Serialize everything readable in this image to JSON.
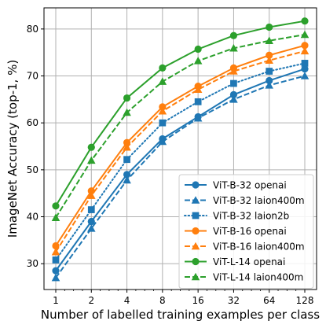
{
  "chart_data": {
    "type": "line",
    "title": "",
    "xlabel": "Number of labelled training examples per class",
    "ylabel": "ImageNet Accuracy (top-1, %)",
    "x_scale": "log2",
    "x": [
      1,
      2,
      4,
      8,
      16,
      32,
      64,
      128
    ],
    "x_tick_labels": [
      "1",
      "2",
      "4",
      "8",
      "16",
      "32",
      "64",
      "128"
    ],
    "ylim": [
      24.5,
      84.5
    ],
    "y_ticks": [
      30,
      40,
      50,
      60,
      70,
      80
    ],
    "grid": true,
    "legend_position": "lower-right",
    "series": [
      {
        "name": "ViT-B-32 openai",
        "color": "#1f77b4",
        "dash": "solid",
        "marker": "circle",
        "values": [
          28.5,
          39.0,
          49.0,
          56.6,
          61.3,
          66.0,
          69.0,
          71.5
        ]
      },
      {
        "name": "ViT-B-32 laion400m",
        "color": "#1f77b4",
        "dash": "dashed",
        "marker": "triangle",
        "values": [
          27.0,
          37.5,
          47.8,
          56.0,
          61.0,
          65.0,
          68.0,
          70.0
        ]
      },
      {
        "name": "ViT-B-32 laion2b",
        "color": "#1f77b4",
        "dash": "dotted",
        "marker": "square",
        "values": [
          30.8,
          41.5,
          52.2,
          60.0,
          64.5,
          68.4,
          71.0,
          72.7
        ]
      },
      {
        "name": "ViT-B-16 openai",
        "color": "#ff7f0e",
        "dash": "solid",
        "marker": "circle",
        "values": [
          33.8,
          45.5,
          55.8,
          63.4,
          67.8,
          71.7,
          74.4,
          76.5
        ]
      },
      {
        "name": "ViT-B-16 laion400m",
        "color": "#ff7f0e",
        "dash": "dashed",
        "marker": "triangle",
        "values": [
          32.5,
          44.5,
          54.8,
          62.5,
          67.1,
          71.0,
          73.3,
          75.3
        ]
      },
      {
        "name": "ViT-L-14 openai",
        "color": "#2ca02c",
        "dash": "solid",
        "marker": "circle",
        "values": [
          42.3,
          54.8,
          65.3,
          71.7,
          75.7,
          78.6,
          80.4,
          81.7
        ]
      },
      {
        "name": "ViT-L-14 laion400m",
        "color": "#2ca02c",
        "dash": "dashed",
        "marker": "triangle",
        "values": [
          39.8,
          52.0,
          62.2,
          68.8,
          73.2,
          75.9,
          77.5,
          78.8
        ]
      }
    ]
  }
}
